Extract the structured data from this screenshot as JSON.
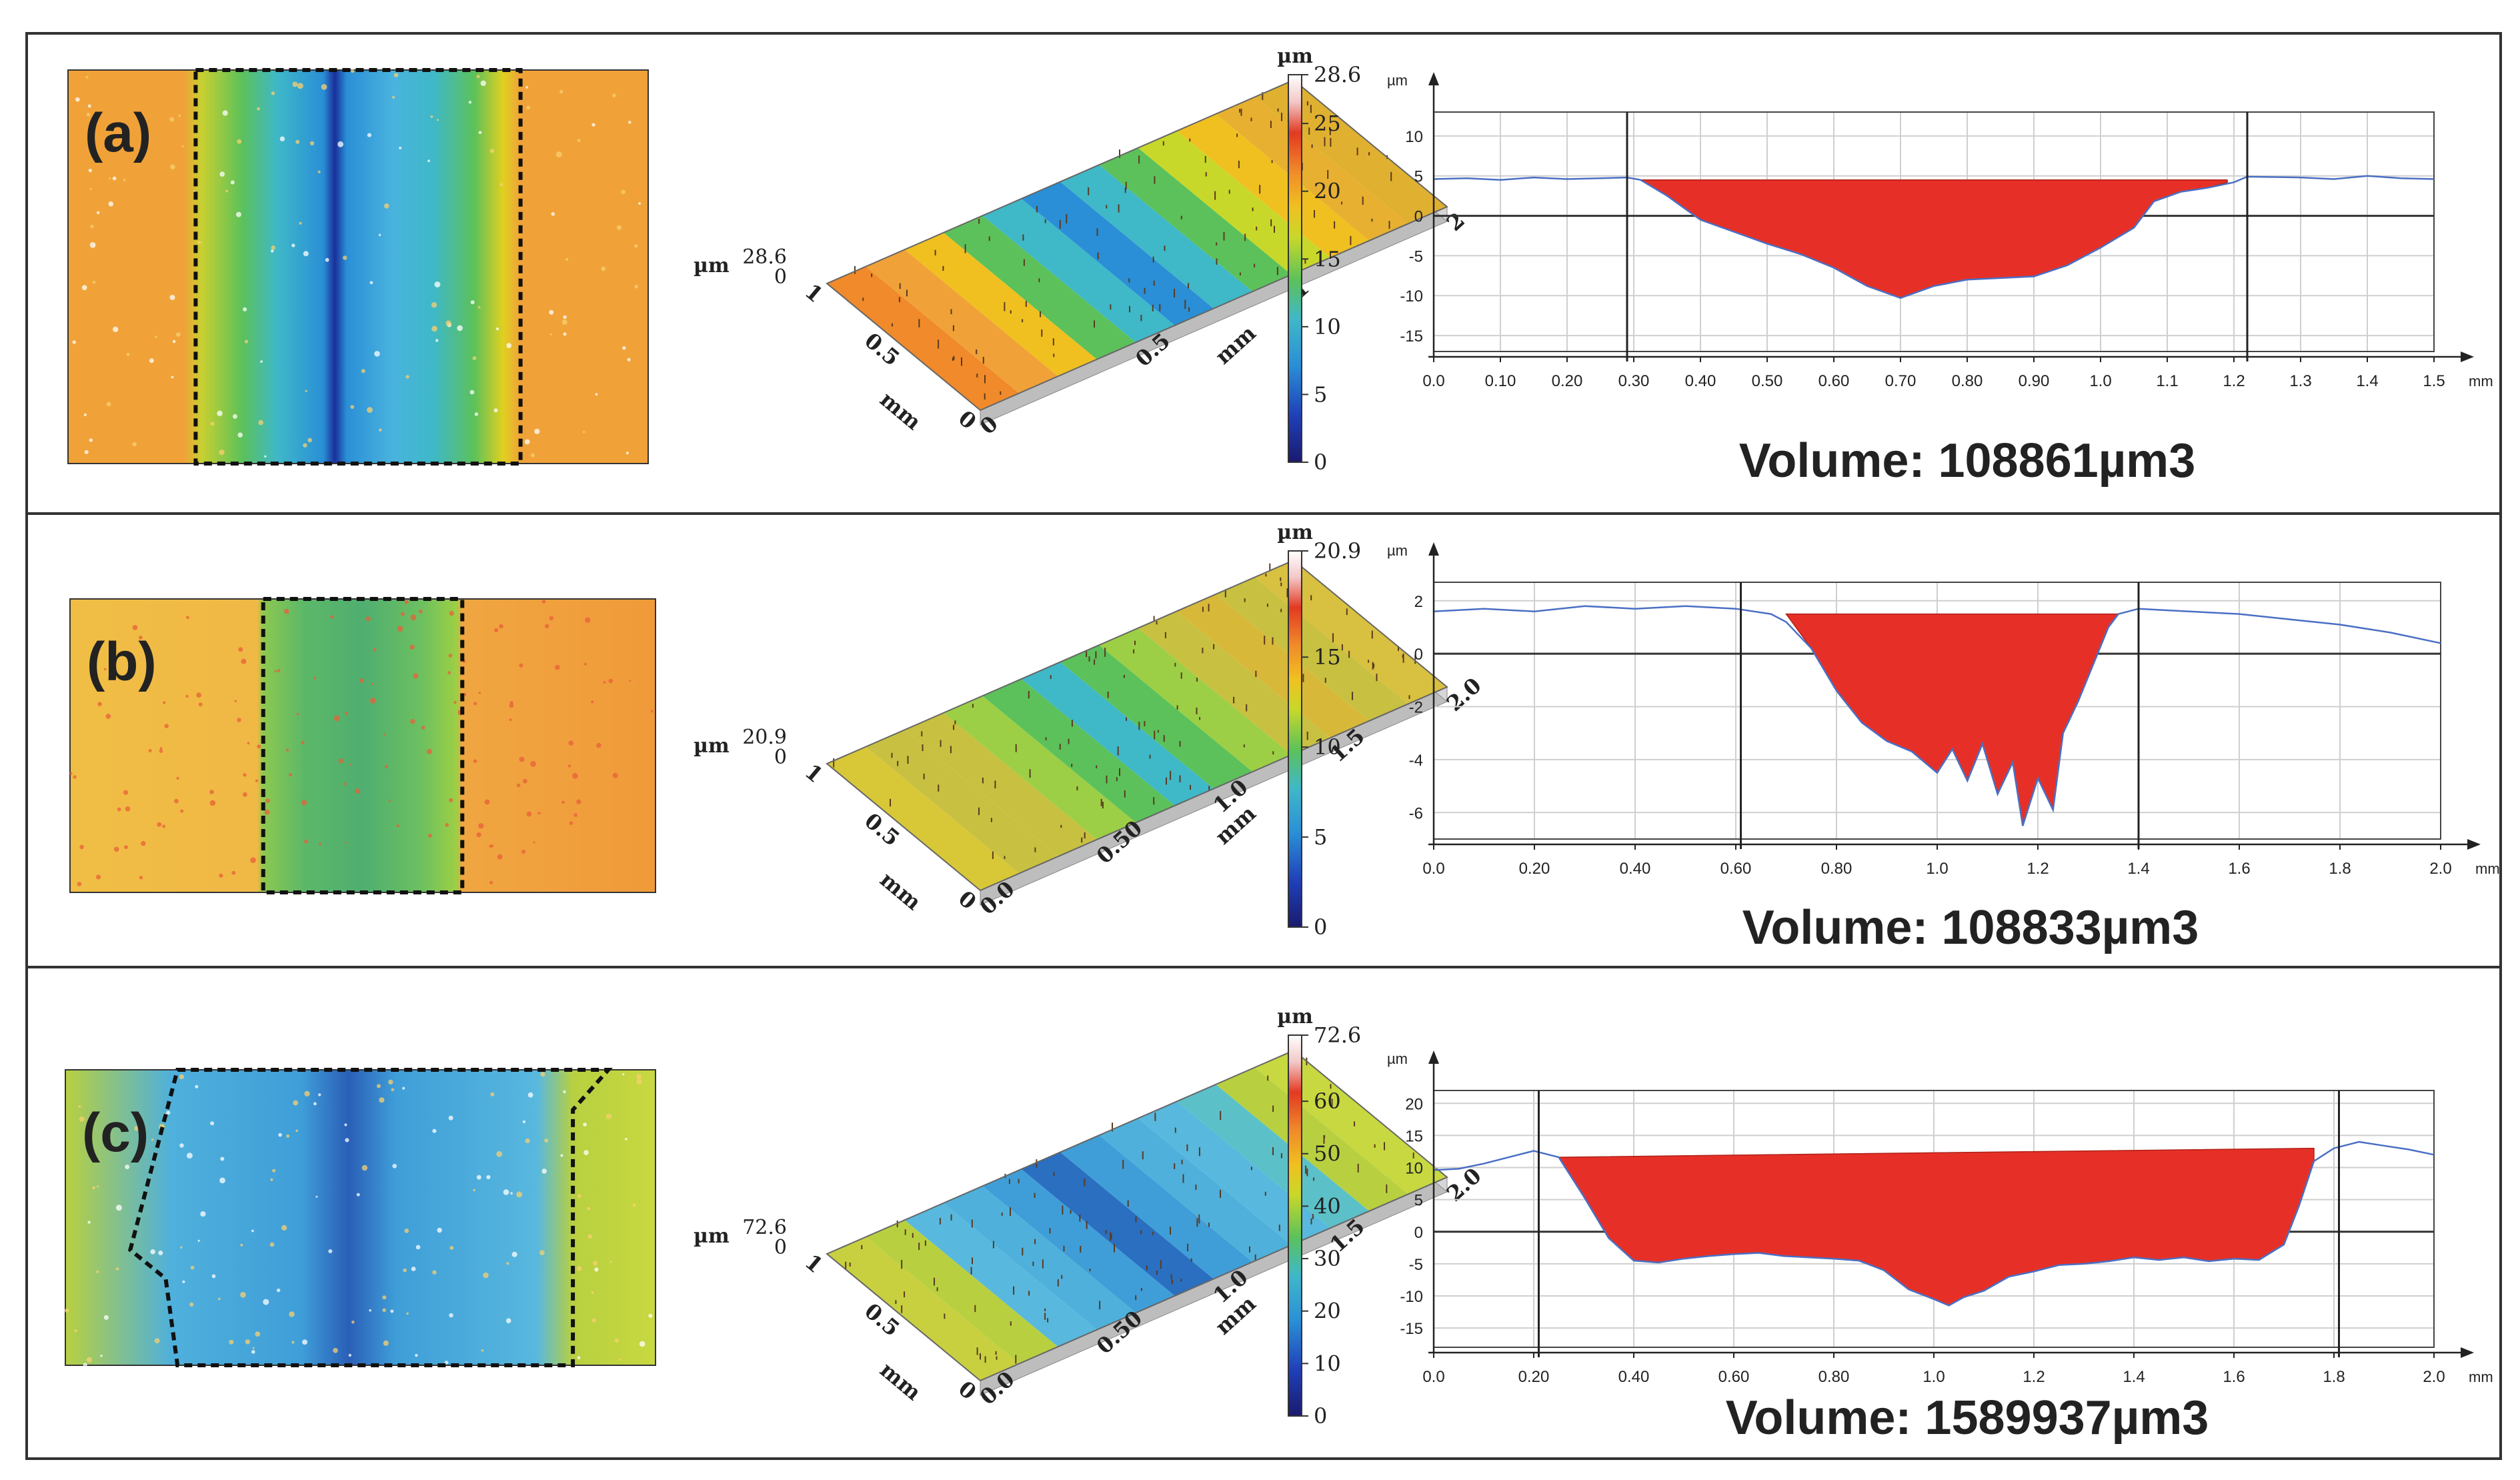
{
  "colors": {
    "frame": "#333333",
    "depression_fill": "#e63027",
    "profile_line": "#4a6fc4",
    "grid": "#cfcfcf",
    "colormap": [
      "#1a1a6e",
      "#1f3fb8",
      "#2a8fd6",
      "#3fb8c8",
      "#5cc15a",
      "#c8d82a",
      "#f0c020",
      "#f08a2a",
      "#e23a22",
      "#f2c8c8",
      "#ffffff"
    ]
  },
  "panels": [
    {
      "label": "(a)",
      "surface_3d": {
        "unit_label": "µm",
        "z_max": "28.6",
        "z_min": "0",
        "axis_unit": "mm",
        "y_ticks": [
          "1",
          "0.5",
          "0"
        ],
        "x_ticks": [
          "0",
          "0.5",
          "1",
          "2"
        ]
      },
      "colorbar": {
        "unit": "µm",
        "ticks": [
          "28.6",
          "25",
          "20",
          "15",
          "10",
          "5",
          "0"
        ],
        "max": 28.6
      },
      "profile": {
        "unit_y": "µm",
        "unit_x": "mm",
        "x_ticks": [
          "0.0",
          "0.10",
          "0.20",
          "0.30",
          "0.40",
          "0.50",
          "0.60",
          "0.70",
          "0.80",
          "0.90",
          "1.0",
          "1.1",
          "1.2",
          "1.3",
          "1.4",
          "1.5"
        ],
        "y_ticks": [
          "10",
          "5",
          "0",
          "-5",
          "-10",
          "-15"
        ],
        "markers": [
          0.29,
          1.22
        ]
      },
      "volume_text": "Volume: 108861µm3"
    },
    {
      "label": "(b)",
      "surface_3d": {
        "unit_label": "µm",
        "z_max": "20.9",
        "z_min": "0",
        "axis_unit": "mm",
        "y_ticks": [
          "1",
          "0.5",
          "0"
        ],
        "x_ticks": [
          "0.0",
          "0.50",
          "1.0",
          "1.5",
          "2.0"
        ]
      },
      "colorbar": {
        "unit": "µm",
        "ticks": [
          "20.9",
          "15",
          "10",
          "5",
          "0"
        ],
        "max": 20.9
      },
      "profile": {
        "unit_y": "µm",
        "unit_x": "mm",
        "x_ticks": [
          "0.0",
          "0.20",
          "0.40",
          "0.60",
          "0.80",
          "1.0",
          "1.2",
          "1.4",
          "1.6",
          "1.8",
          "2.0"
        ],
        "y_ticks": [
          "2",
          "0",
          "-2",
          "-4",
          "-6"
        ],
        "markers": [
          0.61,
          1.4
        ]
      },
      "volume_text": "Volume: 108833µm3"
    },
    {
      "label": "(c)",
      "surface_3d": {
        "unit_label": "µm",
        "z_max": "72.6",
        "z_min": "0",
        "axis_unit": "mm",
        "y_ticks": [
          "1",
          "0.5",
          "0"
        ],
        "x_ticks": [
          "0.0",
          "0.50",
          "1.0",
          "1.5",
          "2.0"
        ]
      },
      "colorbar": {
        "unit": "µm",
        "ticks": [
          "72.6",
          "60",
          "50",
          "40",
          "30",
          "20",
          "10",
          "0"
        ],
        "max": 72.6
      },
      "profile": {
        "unit_y": "µm",
        "unit_x": "mm",
        "x_ticks": [
          "0.0",
          "0.20",
          "0.40",
          "0.60",
          "0.80",
          "1.0",
          "1.2",
          "1.4",
          "1.6",
          "1.8",
          "2.0"
        ],
        "y_ticks": [
          "20",
          "15",
          "10",
          "5",
          "0",
          "-5",
          "-10",
          "-15"
        ],
        "markers": [
          0.21,
          1.81
        ]
      },
      "volume_text": "Volume: 1589937µm3"
    }
  ],
  "chart_data": [
    {
      "type": "area",
      "xlim": [
        0,
        1.5
      ],
      "ylim": [
        -17,
        13
      ],
      "x_ticks": [
        0,
        0.1,
        0.2,
        0.3,
        0.4,
        0.5,
        0.6,
        0.7,
        0.8,
        0.9,
        1.0,
        1.1,
        1.2,
        1.3,
        1.4,
        1.5
      ],
      "y_ticks": [
        10,
        5,
        0,
        -5,
        -10,
        -15
      ],
      "profile": [
        [
          0,
          4.6
        ],
        [
          0.05,
          4.7
        ],
        [
          0.1,
          4.5
        ],
        [
          0.15,
          4.8
        ],
        [
          0.2,
          4.6
        ],
        [
          0.25,
          4.7
        ],
        [
          0.29,
          4.8
        ],
        [
          0.31,
          4.5
        ],
        [
          0.35,
          2.5
        ],
        [
          0.4,
          -0.5
        ],
        [
          0.45,
          -2.0
        ],
        [
          0.5,
          -3.5
        ],
        [
          0.55,
          -4.8
        ],
        [
          0.6,
          -6.5
        ],
        [
          0.65,
          -8.8
        ],
        [
          0.7,
          -10.3
        ],
        [
          0.75,
          -8.8
        ],
        [
          0.8,
          -8.0
        ],
        [
          0.85,
          -7.8
        ],
        [
          0.9,
          -7.6
        ],
        [
          0.95,
          -6.2
        ],
        [
          1.0,
          -4.0
        ],
        [
          1.05,
          -1.5
        ],
        [
          1.08,
          1.8
        ],
        [
          1.12,
          3.0
        ],
        [
          1.16,
          3.5
        ],
        [
          1.2,
          4.2
        ],
        [
          1.22,
          4.9
        ],
        [
          1.3,
          4.8
        ],
        [
          1.35,
          4.6
        ],
        [
          1.4,
          5.0
        ],
        [
          1.45,
          4.7
        ],
        [
          1.5,
          4.6
        ]
      ],
      "depression": [
        [
          0.31,
          4.5
        ],
        [
          0.35,
          2.5
        ],
        [
          0.4,
          -0.5
        ],
        [
          0.45,
          -2.0
        ],
        [
          0.5,
          -3.5
        ],
        [
          0.55,
          -4.8
        ],
        [
          0.6,
          -6.5
        ],
        [
          0.65,
          -8.8
        ],
        [
          0.7,
          -10.3
        ],
        [
          0.75,
          -8.8
        ],
        [
          0.8,
          -8.0
        ],
        [
          0.85,
          -7.8
        ],
        [
          0.9,
          -7.6
        ],
        [
          0.95,
          -6.2
        ],
        [
          1.0,
          -4.0
        ],
        [
          1.05,
          -1.5
        ],
        [
          1.08,
          1.8
        ],
        [
          1.12,
          3.0
        ],
        [
          1.16,
          3.5
        ],
        [
          1.19,
          4.2
        ]
      ],
      "reference_level": 4.5
    },
    {
      "type": "area",
      "xlim": [
        0,
        2.0
      ],
      "ylim": [
        -7,
        2.7
      ],
      "x_ticks": [
        0,
        0.2,
        0.4,
        0.6,
        0.8,
        1.0,
        1.2,
        1.4,
        1.6,
        1.8,
        2.0
      ],
      "y_ticks": [
        2,
        0,
        -2,
        -4,
        -6
      ],
      "profile": [
        [
          0,
          1.6
        ],
        [
          0.1,
          1.7
        ],
        [
          0.2,
          1.6
        ],
        [
          0.3,
          1.8
        ],
        [
          0.4,
          1.7
        ],
        [
          0.5,
          1.8
        ],
        [
          0.6,
          1.7
        ],
        [
          0.67,
          1.5
        ],
        [
          0.7,
          1.2
        ],
        [
          0.75,
          0.2
        ],
        [
          0.8,
          -1.4
        ],
        [
          0.85,
          -2.6
        ],
        [
          0.9,
          -3.3
        ],
        [
          0.95,
          -3.7
        ],
        [
          1.0,
          -4.5
        ],
        [
          1.03,
          -3.6
        ],
        [
          1.06,
          -4.8
        ],
        [
          1.09,
          -3.4
        ],
        [
          1.12,
          -5.3
        ],
        [
          1.15,
          -4.1
        ],
        [
          1.17,
          -6.5
        ],
        [
          1.2,
          -4.7
        ],
        [
          1.23,
          -5.9
        ],
        [
          1.25,
          -3.0
        ],
        [
          1.28,
          -1.8
        ],
        [
          1.31,
          -0.4
        ],
        [
          1.34,
          1.0
        ],
        [
          1.36,
          1.5
        ],
        [
          1.4,
          1.7
        ],
        [
          1.5,
          1.6
        ],
        [
          1.6,
          1.5
        ],
        [
          1.7,
          1.3
        ],
        [
          1.8,
          1.1
        ],
        [
          1.9,
          0.8
        ],
        [
          2.0,
          0.4
        ]
      ],
      "depression": [
        [
          0.7,
          1.5
        ],
        [
          0.75,
          0.2
        ],
        [
          0.8,
          -1.4
        ],
        [
          0.85,
          -2.6
        ],
        [
          0.9,
          -3.3
        ],
        [
          0.95,
          -3.7
        ],
        [
          1.0,
          -4.5
        ],
        [
          1.03,
          -3.6
        ],
        [
          1.06,
          -4.8
        ],
        [
          1.09,
          -3.4
        ],
        [
          1.12,
          -5.3
        ],
        [
          1.15,
          -4.1
        ],
        [
          1.17,
          -6.5
        ],
        [
          1.2,
          -4.7
        ],
        [
          1.23,
          -5.9
        ],
        [
          1.25,
          -3.0
        ],
        [
          1.28,
          -1.8
        ],
        [
          1.31,
          -0.4
        ],
        [
          1.34,
          1.0
        ],
        [
          1.36,
          1.5
        ]
      ],
      "reference_level": 1.5
    },
    {
      "type": "area",
      "xlim": [
        0,
        2.0
      ],
      "ylim": [
        -18,
        22
      ],
      "x_ticks": [
        0,
        0.2,
        0.4,
        0.6,
        0.8,
        1.0,
        1.2,
        1.4,
        1.6,
        1.8,
        2.0
      ],
      "y_ticks": [
        20,
        15,
        10,
        5,
        0,
        -5,
        -10,
        -15
      ],
      "profile": [
        [
          0,
          9.6
        ],
        [
          0.05,
          9.8
        ],
        [
          0.1,
          10.6
        ],
        [
          0.15,
          11.6
        ],
        [
          0.2,
          12.6
        ],
        [
          0.25,
          11.6
        ],
        [
          0.3,
          5.5
        ],
        [
          0.35,
          -1.0
        ],
        [
          0.4,
          -4.5
        ],
        [
          0.45,
          -4.8
        ],
        [
          0.5,
          -4.2
        ],
        [
          0.55,
          -3.8
        ],
        [
          0.6,
          -3.5
        ],
        [
          0.65,
          -3.3
        ],
        [
          0.7,
          -3.8
        ],
        [
          0.75,
          -4.0
        ],
        [
          0.8,
          -4.2
        ],
        [
          0.85,
          -4.5
        ],
        [
          0.9,
          -6.0
        ],
        [
          0.95,
          -9.0
        ],
        [
          1.0,
          -10.5
        ],
        [
          1.03,
          -11.5
        ],
        [
          1.06,
          -10.2
        ],
        [
          1.1,
          -9.2
        ],
        [
          1.15,
          -7.0
        ],
        [
          1.2,
          -6.2
        ],
        [
          1.25,
          -5.2
        ],
        [
          1.3,
          -5.0
        ],
        [
          1.35,
          -4.6
        ],
        [
          1.4,
          -4.0
        ],
        [
          1.45,
          -4.4
        ],
        [
          1.5,
          -4.0
        ],
        [
          1.55,
          -4.6
        ],
        [
          1.6,
          -4.2
        ],
        [
          1.65,
          -4.4
        ],
        [
          1.7,
          -2.0
        ],
        [
          1.73,
          4.0
        ],
        [
          1.76,
          11.0
        ],
        [
          1.8,
          13.0
        ],
        [
          1.85,
          14.0
        ],
        [
          1.9,
          13.4
        ],
        [
          1.95,
          12.8
        ],
        [
          2.0,
          12.0
        ]
      ],
      "depression": [
        [
          0.25,
          11.6
        ],
        [
          0.3,
          5.5
        ],
        [
          0.35,
          -1.0
        ],
        [
          0.4,
          -4.5
        ],
        [
          0.45,
          -4.8
        ],
        [
          0.5,
          -4.2
        ],
        [
          0.55,
          -3.8
        ],
        [
          0.6,
          -3.5
        ],
        [
          0.65,
          -3.3
        ],
        [
          0.7,
          -3.8
        ],
        [
          0.75,
          -4.0
        ],
        [
          0.8,
          -4.2
        ],
        [
          0.85,
          -4.5
        ],
        [
          0.9,
          -6.0
        ],
        [
          0.95,
          -9.0
        ],
        [
          1.0,
          -10.5
        ],
        [
          1.03,
          -11.5
        ],
        [
          1.06,
          -10.2
        ],
        [
          1.1,
          -9.2
        ],
        [
          1.15,
          -7.0
        ],
        [
          1.2,
          -6.2
        ],
        [
          1.25,
          -5.2
        ],
        [
          1.3,
          -5.0
        ],
        [
          1.35,
          -4.6
        ],
        [
          1.4,
          -4.0
        ],
        [
          1.45,
          -4.4
        ],
        [
          1.5,
          -4.0
        ],
        [
          1.55,
          -4.6
        ],
        [
          1.6,
          -4.2
        ],
        [
          1.65,
          -4.4
        ],
        [
          1.7,
          -2.0
        ],
        [
          1.73,
          4.0
        ],
        [
          1.76,
          11.0
        ]
      ],
      "reference_level_start": 11.6,
      "reference_level_end": 13.0
    }
  ]
}
